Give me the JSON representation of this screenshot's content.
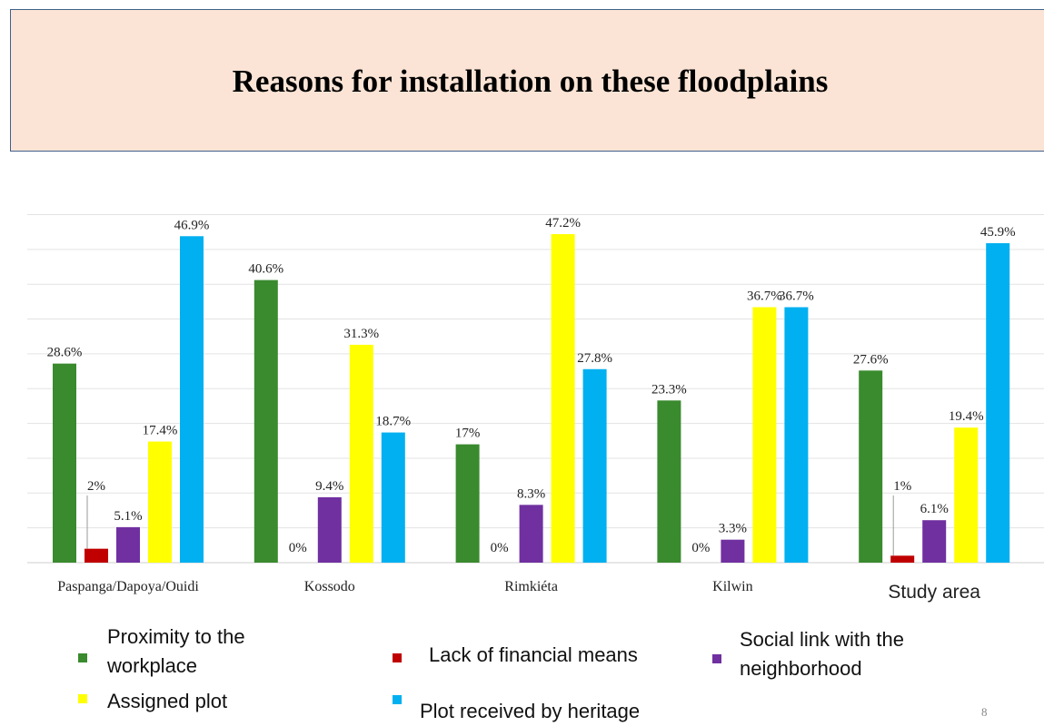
{
  "slide": {
    "title": "Reasons for installation on these floodplains",
    "page_number": "8"
  },
  "chart_data": {
    "type": "bar",
    "title": "",
    "xlabel": "",
    "ylabel": "",
    "ylim": [
      0,
      50
    ],
    "grid": true,
    "legend_position": "bottom",
    "categories": [
      "Paspanga/Dapoya/Ouidi",
      "Kossodo",
      "Rimkiéta",
      "Kilwin",
      "Study area"
    ],
    "series": [
      {
        "name": "Proximity to the workplace",
        "color": "#3a8a2e",
        "values": [
          28.6,
          40.6,
          17,
          23.3,
          27.6
        ],
        "labels": [
          "28.6%",
          "40.6%",
          "17%",
          "23.3%",
          "27.6%"
        ]
      },
      {
        "name": "Lack of financial means",
        "color": "#c00000",
        "values": [
          2,
          0,
          0,
          0,
          1
        ],
        "labels": [
          "2%",
          "0%",
          "0%",
          "0%",
          "1%"
        ]
      },
      {
        "name": "Social link with the neighborhood",
        "color": "#7030a0",
        "values": [
          5.1,
          9.4,
          8.3,
          3.3,
          6.1
        ],
        "labels": [
          "5.1%",
          "9.4%",
          "8.3%",
          "3.3%",
          "6.1%"
        ]
      },
      {
        "name": "Assigned plot",
        "color": "#ffff00",
        "values": [
          17.4,
          31.3,
          47.2,
          36.7,
          19.4
        ],
        "labels": [
          "17.4%",
          "31.3%",
          "47.2%",
          "36.7%",
          "19.4%"
        ]
      },
      {
        "name": "Plot received by heritage",
        "color": "#00b0f0",
        "values": [
          46.9,
          18.7,
          27.8,
          36.7,
          45.9
        ],
        "labels": [
          "46.9%",
          "18.7%",
          "27.8%",
          "36.7%",
          "45.9%"
        ]
      }
    ]
  }
}
